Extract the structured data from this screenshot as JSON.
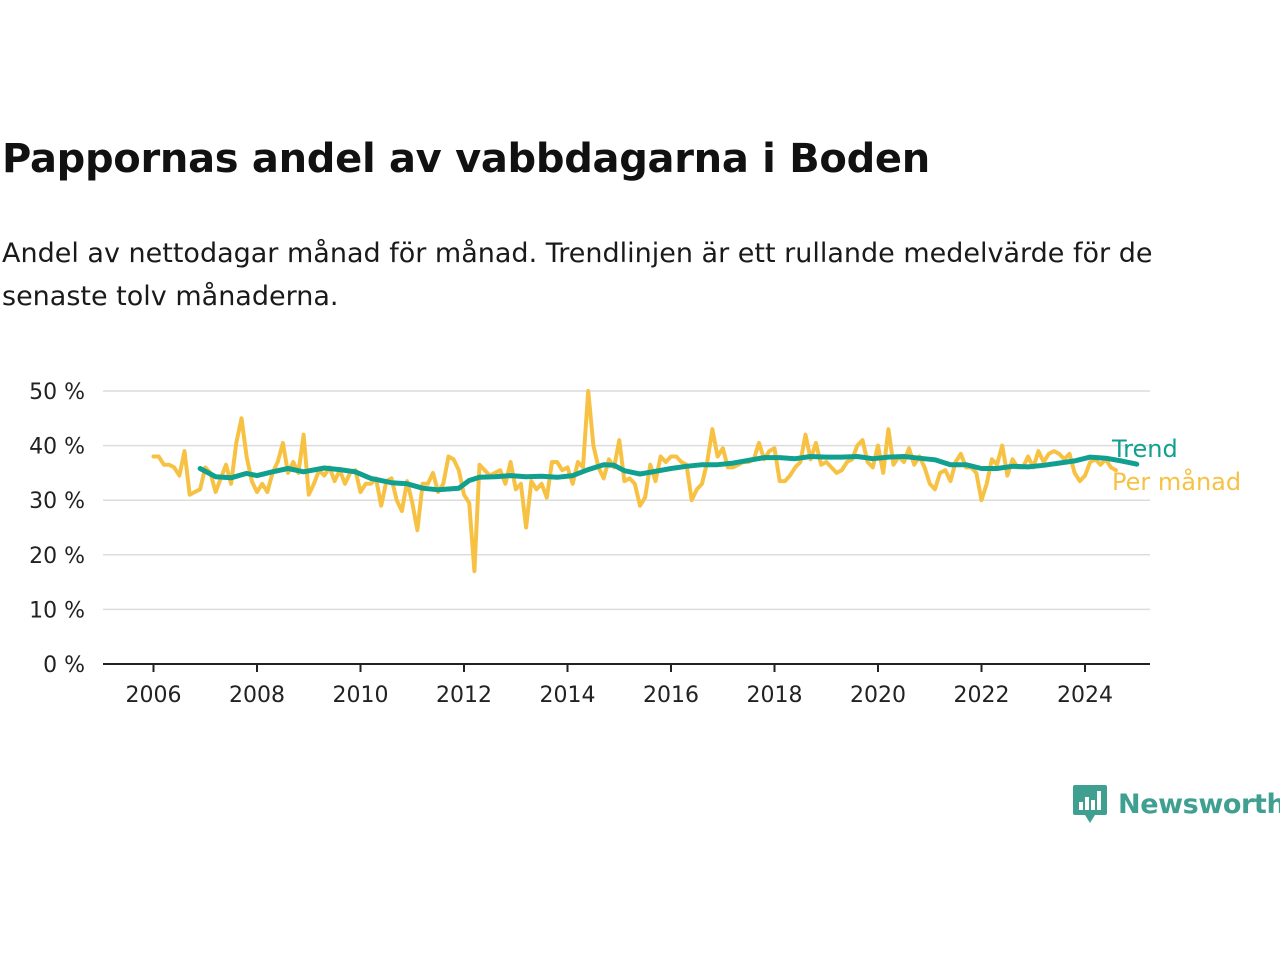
{
  "header": {
    "title": "Pappornas andel av vabbdagarna i Boden",
    "subtitle": "Andel av nettodagar månad för månad. Trendlinjen är ett rullande medelvärde för de senaste tolv månaderna."
  },
  "logo": {
    "text": "Newsworthy",
    "icon": "chat-bar-chart-icon",
    "color": "#3f9f91"
  },
  "chart_data": {
    "type": "line",
    "x_axis": {
      "min": 2005.7,
      "max": 2025.2,
      "ticks": [
        2006,
        2008,
        2010,
        2012,
        2014,
        2016,
        2018,
        2020,
        2022,
        2024
      ]
    },
    "y_axis": {
      "min": 0,
      "max": 50,
      "ticks": [
        0,
        10,
        20,
        30,
        40,
        50
      ],
      "tick_suffix": " %"
    },
    "grid": true,
    "legend_placement": "right, at line ends",
    "series": [
      {
        "name": "Per månad",
        "color": "#f7c244",
        "points": [
          [
            2006.0,
            38
          ],
          [
            2006.1,
            38
          ],
          [
            2006.2,
            36.5
          ],
          [
            2006.3,
            36.5
          ],
          [
            2006.4,
            36
          ],
          [
            2006.5,
            34.5
          ],
          [
            2006.6,
            39
          ],
          [
            2006.7,
            31
          ],
          [
            2006.8,
            31.5
          ],
          [
            2006.9,
            32
          ],
          [
            2007.0,
            36
          ],
          [
            2007.1,
            35
          ],
          [
            2007.2,
            31.5
          ],
          [
            2007.3,
            34
          ],
          [
            2007.4,
            36.5
          ],
          [
            2007.5,
            33
          ],
          [
            2007.6,
            40.5
          ],
          [
            2007.7,
            45
          ],
          [
            2007.8,
            38
          ],
          [
            2007.9,
            33.5
          ],
          [
            2008.0,
            31.5
          ],
          [
            2008.1,
            33
          ],
          [
            2008.2,
            31.5
          ],
          [
            2008.3,
            35
          ],
          [
            2008.4,
            37
          ],
          [
            2008.5,
            40.5
          ],
          [
            2008.6,
            35
          ],
          [
            2008.7,
            37
          ],
          [
            2008.8,
            35
          ],
          [
            2008.9,
            42
          ],
          [
            2009.0,
            31
          ],
          [
            2009.1,
            33
          ],
          [
            2009.2,
            35.5
          ],
          [
            2009.3,
            34.5
          ],
          [
            2009.4,
            36
          ],
          [
            2009.5,
            33.5
          ],
          [
            2009.6,
            35.5
          ],
          [
            2009.7,
            33
          ],
          [
            2009.8,
            35
          ],
          [
            2009.9,
            35.5
          ],
          [
            2010.0,
            31.5
          ],
          [
            2010.1,
            33
          ],
          [
            2010.2,
            33
          ],
          [
            2010.3,
            34
          ],
          [
            2010.4,
            29
          ],
          [
            2010.5,
            33.5
          ],
          [
            2010.6,
            34
          ],
          [
            2010.7,
            30
          ],
          [
            2010.8,
            28
          ],
          [
            2010.9,
            33.5
          ],
          [
            2011.0,
            29.5
          ],
          [
            2011.1,
            24.5
          ],
          [
            2011.2,
            33
          ],
          [
            2011.3,
            33
          ],
          [
            2011.4,
            35
          ],
          [
            2011.5,
            31.5
          ],
          [
            2011.6,
            33
          ],
          [
            2011.7,
            38
          ],
          [
            2011.8,
            37.5
          ],
          [
            2011.9,
            35.5
          ],
          [
            2012.0,
            31
          ],
          [
            2012.1,
            29.5
          ],
          [
            2012.2,
            17
          ],
          [
            2012.3,
            36.5
          ],
          [
            2012.4,
            35.5
          ],
          [
            2012.5,
            34.5
          ],
          [
            2012.6,
            35
          ],
          [
            2012.7,
            35.5
          ],
          [
            2012.8,
            33
          ],
          [
            2012.9,
            37
          ],
          [
            2013.0,
            32
          ],
          [
            2013.1,
            33
          ],
          [
            2013.2,
            25
          ],
          [
            2013.3,
            33.5
          ],
          [
            2013.4,
            32
          ],
          [
            2013.5,
            33
          ],
          [
            2013.6,
            30.5
          ],
          [
            2013.7,
            37
          ],
          [
            2013.8,
            37
          ],
          [
            2013.9,
            35.5
          ],
          [
            2014.0,
            36
          ],
          [
            2014.1,
            33
          ],
          [
            2014.2,
            37
          ],
          [
            2014.3,
            36
          ],
          [
            2014.4,
            50
          ],
          [
            2014.5,
            40
          ],
          [
            2014.6,
            36
          ],
          [
            2014.7,
            34
          ],
          [
            2014.8,
            37.5
          ],
          [
            2014.9,
            36
          ],
          [
            2015.0,
            41
          ],
          [
            2015.1,
            33.5
          ],
          [
            2015.2,
            34
          ],
          [
            2015.3,
            33
          ],
          [
            2015.4,
            29
          ],
          [
            2015.5,
            30.5
          ],
          [
            2015.6,
            36.5
          ],
          [
            2015.7,
            33.5
          ],
          [
            2015.8,
            38
          ],
          [
            2015.9,
            37
          ],
          [
            2016.0,
            38
          ],
          [
            2016.1,
            38
          ],
          [
            2016.2,
            37
          ],
          [
            2016.3,
            36.5
          ],
          [
            2016.4,
            30
          ],
          [
            2016.5,
            32
          ],
          [
            2016.6,
            33
          ],
          [
            2016.7,
            37
          ],
          [
            2016.8,
            43
          ],
          [
            2016.9,
            38
          ],
          [
            2017.0,
            39.5
          ],
          [
            2017.1,
            36
          ],
          [
            2017.2,
            36
          ],
          [
            2017.3,
            36.5
          ],
          [
            2017.4,
            37
          ],
          [
            2017.5,
            37
          ],
          [
            2017.6,
            37.5
          ],
          [
            2017.7,
            40.5
          ],
          [
            2017.8,
            37.5
          ],
          [
            2017.9,
            39
          ],
          [
            2018.0,
            39.5
          ],
          [
            2018.1,
            33.5
          ],
          [
            2018.2,
            33.5
          ],
          [
            2018.3,
            34.5
          ],
          [
            2018.4,
            36
          ],
          [
            2018.5,
            37
          ],
          [
            2018.6,
            42
          ],
          [
            2018.7,
            37.5
          ],
          [
            2018.8,
            40.5
          ],
          [
            2018.9,
            36.5
          ],
          [
            2019.0,
            37
          ],
          [
            2019.1,
            36
          ],
          [
            2019.2,
            35
          ],
          [
            2019.3,
            35.5
          ],
          [
            2019.4,
            37
          ],
          [
            2019.5,
            37.5
          ],
          [
            2019.6,
            40
          ],
          [
            2019.7,
            41
          ],
          [
            2019.8,
            37
          ],
          [
            2019.9,
            36
          ],
          [
            2020.0,
            40
          ],
          [
            2020.1,
            35
          ],
          [
            2020.2,
            43
          ],
          [
            2020.3,
            36.5
          ],
          [
            2020.4,
            38
          ],
          [
            2020.5,
            37
          ],
          [
            2020.6,
            39.5
          ],
          [
            2020.7,
            36.5
          ],
          [
            2020.8,
            38
          ],
          [
            2020.9,
            36
          ],
          [
            2021.0,
            33
          ],
          [
            2021.1,
            32
          ],
          [
            2021.2,
            35
          ],
          [
            2021.3,
            35.5
          ],
          [
            2021.4,
            33.5
          ],
          [
            2021.5,
            37
          ],
          [
            2021.6,
            38.5
          ],
          [
            2021.7,
            36
          ],
          [
            2021.8,
            36
          ],
          [
            2021.9,
            35
          ],
          [
            2022.0,
            30
          ],
          [
            2022.1,
            33
          ],
          [
            2022.2,
            37.5
          ],
          [
            2022.3,
            36.5
          ],
          [
            2022.4,
            40
          ],
          [
            2022.5,
            34.5
          ],
          [
            2022.6,
            37.5
          ],
          [
            2022.7,
            36
          ],
          [
            2022.8,
            36
          ],
          [
            2022.9,
            38
          ],
          [
            2023.0,
            36
          ],
          [
            2023.1,
            39
          ],
          [
            2023.2,
            37
          ],
          [
            2023.3,
            38.5
          ],
          [
            2023.4,
            39
          ],
          [
            2023.5,
            38.5
          ],
          [
            2023.6,
            37.5
          ],
          [
            2023.7,
            38.5
          ],
          [
            2023.8,
            35
          ],
          [
            2023.9,
            33.5
          ],
          [
            2024.0,
            34.5
          ],
          [
            2024.1,
            37
          ],
          [
            2024.2,
            37.5
          ],
          [
            2024.3,
            36.5
          ],
          [
            2024.4,
            37.5
          ],
          [
            2024.5,
            36
          ],
          [
            2024.6,
            35.5
          ]
        ]
      },
      {
        "name": "Trend",
        "color": "#11a08f",
        "points": [
          [
            2006.9,
            35.8
          ],
          [
            2007.2,
            34.3
          ],
          [
            2007.5,
            34.1
          ],
          [
            2007.8,
            34.9
          ],
          [
            2008.0,
            34.5
          ],
          [
            2008.3,
            35.2
          ],
          [
            2008.6,
            35.8
          ],
          [
            2008.9,
            35.2
          ],
          [
            2009.3,
            35.9
          ],
          [
            2009.6,
            35.6
          ],
          [
            2009.9,
            35.2
          ],
          [
            2010.2,
            34.0
          ],
          [
            2010.6,
            33.2
          ],
          [
            2010.9,
            33.0
          ],
          [
            2011.2,
            32.2
          ],
          [
            2011.5,
            31.9
          ],
          [
            2011.9,
            32.2
          ],
          [
            2012.1,
            33.6
          ],
          [
            2012.3,
            34.2
          ],
          [
            2012.6,
            34.3
          ],
          [
            2012.9,
            34.5
          ],
          [
            2013.2,
            34.3
          ],
          [
            2013.5,
            34.4
          ],
          [
            2013.8,
            34.2
          ],
          [
            2014.1,
            34.5
          ],
          [
            2014.4,
            35.6
          ],
          [
            2014.7,
            36.5
          ],
          [
            2014.9,
            36.4
          ],
          [
            2015.1,
            35.4
          ],
          [
            2015.4,
            34.8
          ],
          [
            2015.7,
            35.3
          ],
          [
            2016.0,
            35.8
          ],
          [
            2016.3,
            36.2
          ],
          [
            2016.6,
            36.5
          ],
          [
            2016.9,
            36.5
          ],
          [
            2017.2,
            36.8
          ],
          [
            2017.5,
            37.3
          ],
          [
            2017.8,
            37.8
          ],
          [
            2018.1,
            37.8
          ],
          [
            2018.4,
            37.6
          ],
          [
            2018.7,
            38.0
          ],
          [
            2019.0,
            37.9
          ],
          [
            2019.3,
            37.9
          ],
          [
            2019.6,
            38.0
          ],
          [
            2019.9,
            37.6
          ],
          [
            2020.2,
            37.9
          ],
          [
            2020.5,
            38.0
          ],
          [
            2020.8,
            37.7
          ],
          [
            2021.1,
            37.4
          ],
          [
            2021.4,
            36.5
          ],
          [
            2021.7,
            36.5
          ],
          [
            2022.0,
            35.8
          ],
          [
            2022.3,
            35.8
          ],
          [
            2022.6,
            36.2
          ],
          [
            2022.9,
            36.1
          ],
          [
            2023.2,
            36.4
          ],
          [
            2023.5,
            36.8
          ],
          [
            2023.8,
            37.2
          ],
          [
            2024.1,
            37.9
          ],
          [
            2024.4,
            37.7
          ],
          [
            2024.7,
            37.2
          ],
          [
            2024.9,
            36.8
          ],
          [
            2025.0,
            36.6
          ]
        ]
      }
    ]
  }
}
